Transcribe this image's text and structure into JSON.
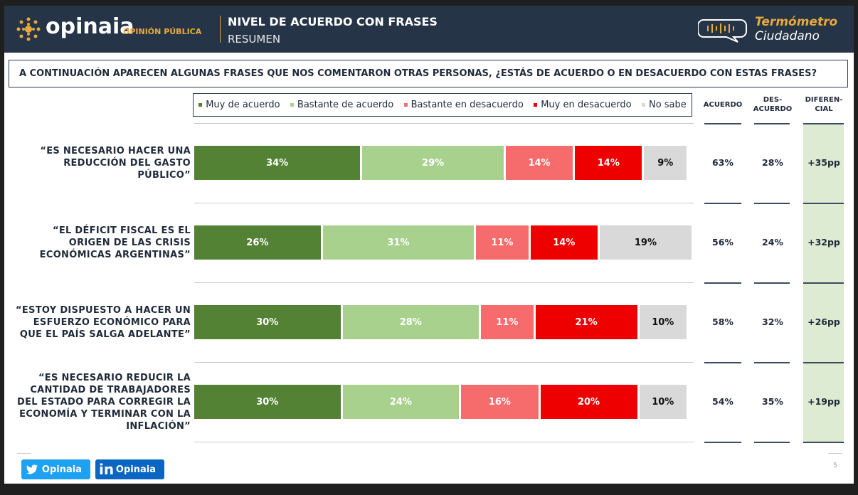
{
  "header": {
    "logo": "opinaia",
    "logo_tag": "OPINIÓN PÚBLICA",
    "title": "NIVEL DE ACUERDO CON FRASES",
    "subtitle": "RESUMEN",
    "brand_top": "Termómetro",
    "brand_bottom": "Ciudadano"
  },
  "question": "A CONTINUACIÓN APARECEN ALGUNAS FRASES QUE NOS COMENTARON OTRAS PERSONAS, ¿ESTÁS DE ACUERDO O EN DESACUERDO CON ESTAS FRASES?",
  "chart_data": {
    "type": "bar",
    "stacked": true,
    "orientation": "horizontal",
    "categories": [
      "“ES NECESARIO HACER UNA REDUCCIÓN DEL GASTO PÚBLICO”",
      "“EL DÉFICIT FISCAL ES EL ORIGEN DE LAS CRISIS ECONÓMICAS ARGENTINAS”",
      "“ESTOY DISPUESTO A HACER UN ESFUERZO ECONÓMICO PARA QUE EL PAÍS SALGA ADELANTE”",
      "“ES NECESARIO REDUCIR LA CANTIDAD DE TRABAJADORES DEL ESTADO PARA CORREGIR LA ECONOMÍA Y TERMINAR CON LA INFLACIÓN”"
    ],
    "series": [
      {
        "name": "Muy de acuerdo",
        "color": "#548235",
        "text_color": "#ffffff",
        "values": [
          34,
          26,
          30,
          30
        ],
        "value_labels": [
          "34%",
          "26%",
          "30%",
          "30%"
        ]
      },
      {
        "name": "Bastante de acuerdo",
        "color": "#a9d18e",
        "text_color": "#ffffff",
        "values": [
          29,
          31,
          28,
          24
        ],
        "value_labels": [
          "29%",
          "31%",
          "28%",
          "24%"
        ]
      },
      {
        "name": "Bastante en desacuerdo",
        "color": "#f66b6b",
        "text_color": "#ffffff",
        "values": [
          14,
          11,
          11,
          16
        ],
        "value_labels": [
          "14%",
          "11%",
          "11%",
          "16%"
        ]
      },
      {
        "name": "Muy en desacuerdo",
        "color": "#ee0000",
        "text_color": "#ffffff",
        "values": [
          14,
          14,
          21,
          20
        ],
        "value_labels": [
          "14%",
          "14%",
          "21%",
          "20%"
        ]
      },
      {
        "name": "No sabe",
        "color": "#d9d9d9",
        "text_color": "#111111",
        "values": [
          9,
          19,
          10,
          10
        ],
        "value_labels": [
          "9%",
          "19%",
          "10%",
          "10%"
        ]
      }
    ],
    "summary": {
      "headers": [
        [
          "ACUERDO"
        ],
        [
          "DES-",
          "ACUERDO"
        ],
        [
          "DIFEREN-",
          "CIAL"
        ]
      ],
      "rows": [
        [
          "63%",
          "28%",
          "+35pp"
        ],
        [
          "56%",
          "24%",
          "+32pp"
        ],
        [
          "58%",
          "32%",
          "+26pp"
        ],
        [
          "54%",
          "35%",
          "+19pp"
        ]
      ]
    }
  },
  "footer": {
    "twitter": "Opinaia",
    "linkedin": "Opinaia",
    "page": "5"
  }
}
